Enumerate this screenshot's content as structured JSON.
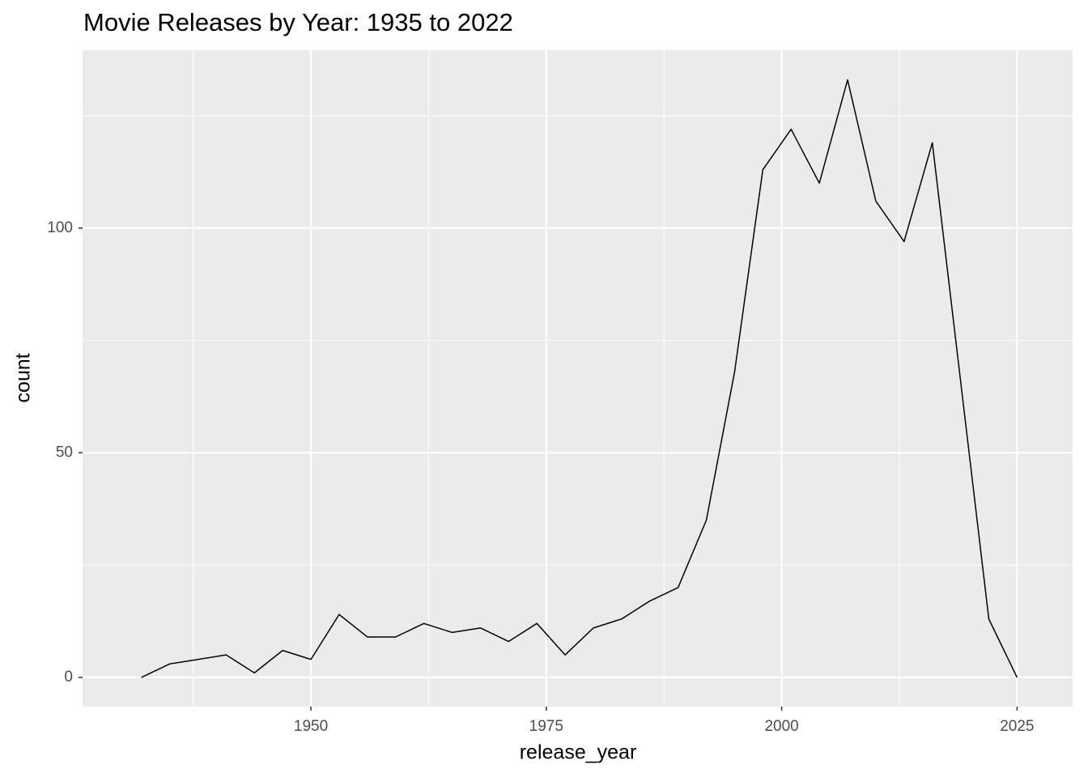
{
  "chart_data": {
    "type": "line",
    "title": "Movie Releases by Year: 1935 to 2022",
    "x_label": "release_year",
    "y_label": "count",
    "x": [
      1932,
      1935,
      1938,
      1941,
      1944,
      1947,
      1950,
      1953,
      1956,
      1959,
      1962,
      1965,
      1968,
      1971,
      1974,
      1977,
      1980,
      1983,
      1986,
      1989,
      1992,
      1995,
      1998,
      2001,
      2004,
      2007,
      2010,
      2013,
      2016,
      2019,
      2022,
      2025
    ],
    "series": [
      {
        "color": "#000000",
        "values": [
          0,
          3,
          4,
          5,
          1,
          6,
          4,
          14,
          9,
          9,
          12,
          10,
          11,
          8,
          12,
          5,
          11,
          13,
          17,
          20,
          35,
          68,
          113,
          122,
          110,
          133,
          106,
          97,
          119,
          66,
          13,
          0
        ]
      }
    ],
    "xlim": [
      1925.75,
      2030.9
    ],
    "xticks": [
      1950,
      1975,
      2000,
      2025
    ],
    "ylim": [
      -6.5,
      139.6
    ],
    "yticks": [
      0,
      50,
      100
    ],
    "grid": true,
    "panel_color": "#ebebeb",
    "grid_color": "#ffffff"
  }
}
